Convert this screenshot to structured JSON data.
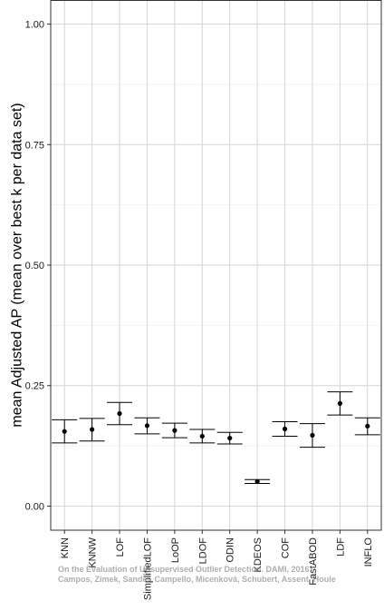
{
  "chart_data": {
    "type": "errorbar",
    "title": "",
    "xlabel": "",
    "ylabel": "mean Adjusted AP (mean over best k per data set)",
    "ylim": [
      -0.05,
      1.05
    ],
    "yticks": [
      0.0,
      0.25,
      0.5,
      0.75,
      1.0
    ],
    "ytick_labels": [
      "0.00",
      "0.25",
      "0.50",
      "0.75",
      "1.00"
    ],
    "grid": true,
    "legend": "none",
    "categories": [
      "KNN",
      "KNNW",
      "LOF",
      "SimplifiedLOF",
      "LoOP",
      "LDOF",
      "ODIN",
      "KDEOS",
      "COF",
      "FastABOD",
      "LDF",
      "INFLO"
    ],
    "series": [
      {
        "mean": [
          0.155,
          0.159,
          0.192,
          0.167,
          0.157,
          0.145,
          0.141,
          0.051,
          0.16,
          0.147,
          0.213,
          0.166
        ],
        "lower": [
          0.131,
          0.135,
          0.169,
          0.15,
          0.142,
          0.131,
          0.129,
          0.047,
          0.145,
          0.122,
          0.189,
          0.148
        ],
        "upper": [
          0.179,
          0.182,
          0.215,
          0.183,
          0.172,
          0.159,
          0.153,
          0.055,
          0.175,
          0.171,
          0.237,
          0.183
        ]
      }
    ],
    "colors": {
      "grid": "#d6d6d6",
      "panel_border": "#333333",
      "marks": "#000000"
    }
  },
  "watermark": {
    "line1": "On the Evaluation of Unsupervised Outlier Detection. DAMI, 2016.",
    "line2": "Campos, Zimek, Sander, Campello, Micenková, Schubert, Assent, Houle"
  }
}
